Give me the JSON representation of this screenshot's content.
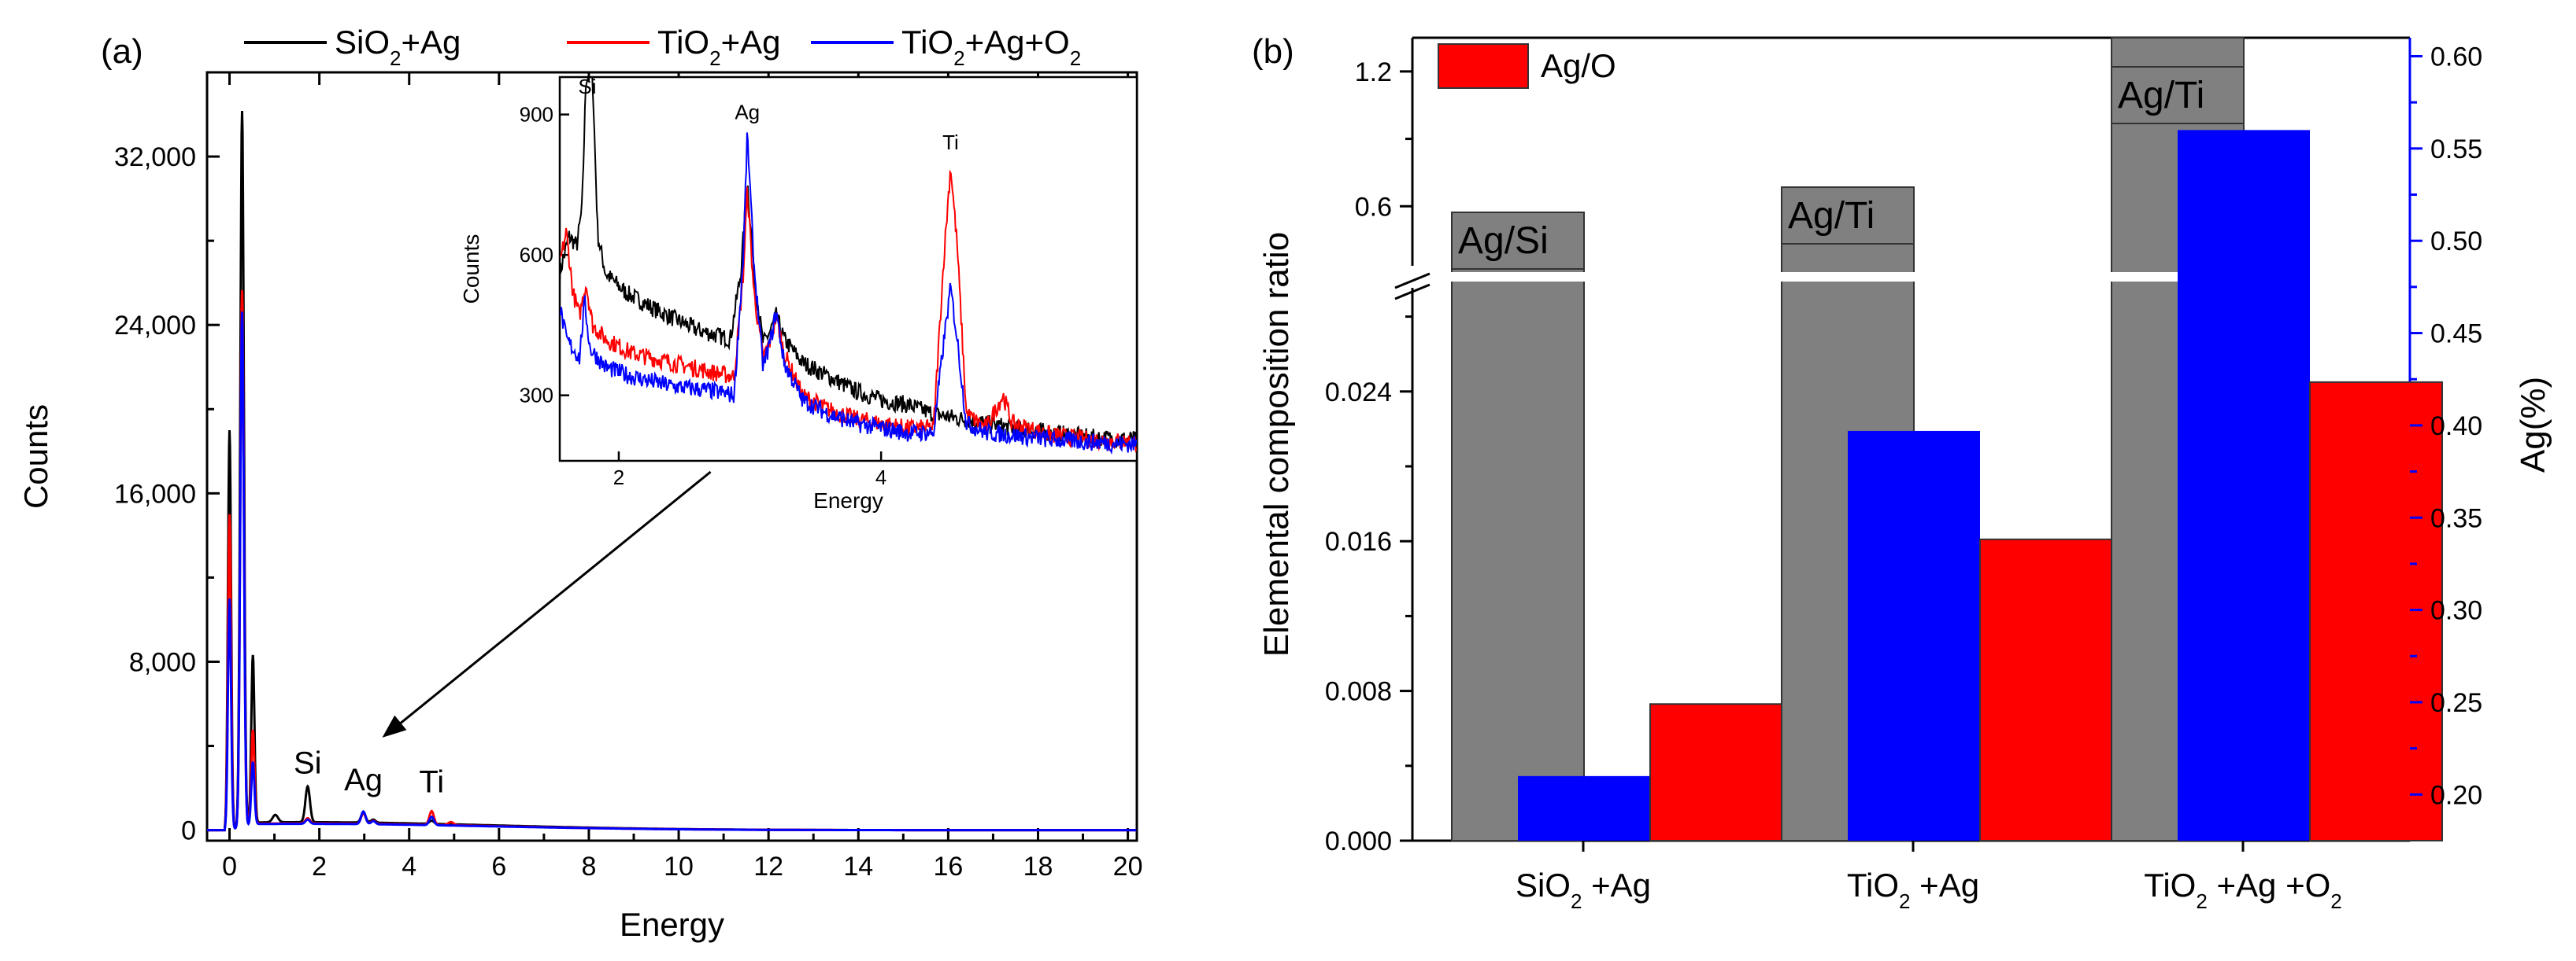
{
  "chart_data": [
    {
      "panel": "(a)",
      "type": "line",
      "xlabel": "Energy",
      "ylabel": "Counts",
      "xlim": [
        -0.5,
        20.2
      ],
      "ylim": [
        -500,
        36000
      ],
      "xticks": [
        0,
        2,
        4,
        6,
        8,
        10,
        12,
        14,
        16,
        18,
        20
      ],
      "xtick_labels": [
        "0",
        "2",
        "4",
        "6",
        "8",
        "10",
        "12",
        "14",
        "16",
        "18",
        "20"
      ],
      "yticks": [
        0,
        8000,
        16000,
        24000,
        32000
      ],
      "ytick_labels": [
        "0",
        "8,000",
        "16,000",
        "24,000",
        "32,000"
      ],
      "legend": [
        {
          "base": "SiO",
          "sub": "2",
          "rest": "+Ag",
          "color": "#000000"
        },
        {
          "base": "TiO",
          "sub": "2",
          "rest": "+Ag",
          "color": "#ff0000"
        },
        {
          "base": "TiO",
          "sub": "2",
          "rest": "+Ag+O",
          "sub2": "2",
          "color": "#0000ff"
        }
      ],
      "annotations": [
        {
          "text": "Si",
          "x": 1.74,
          "y": 1800
        },
        {
          "text": "Ag",
          "x": 2.98,
          "y": 1000
        },
        {
          "text": "Ti",
          "x": 4.5,
          "y": 900
        }
      ],
      "arrow": {
        "from_inset_x": 2.7,
        "to": [
          3.4,
          4400
        ]
      },
      "series": [
        {
          "name": "SiO2+Ag",
          "color": "#000000",
          "peaks": [
            [
              0.0,
              19000,
              0.035
            ],
            [
              0.28,
              34000,
              0.04
            ],
            [
              0.52,
              8000,
              0.035
            ],
            [
              1.02,
              350,
              0.06
            ],
            [
              1.74,
              1700,
              0.05
            ],
            [
              2.98,
              500,
              0.05
            ],
            [
              3.2,
              150,
              0.05
            ],
            [
              4.5,
              150,
              0.05
            ]
          ],
          "background": 380
        },
        {
          "name": "TiO2+Ag",
          "color": "#ff0000",
          "peaks": [
            [
              0.0,
              15000,
              0.035
            ],
            [
              0.28,
              25500,
              0.04
            ],
            [
              0.52,
              4500,
              0.035
            ],
            [
              1.74,
              250,
              0.05
            ],
            [
              2.98,
              500,
              0.05
            ],
            [
              3.2,
              150,
              0.05
            ],
            [
              4.5,
              650,
              0.05
            ],
            [
              4.93,
              150,
              0.06
            ]
          ],
          "background": 320
        },
        {
          "name": "TiO2+Ag+O2",
          "color": "#0000ff",
          "peaks": [
            [
              0.0,
              11000,
              0.035
            ],
            [
              0.28,
              24500,
              0.04
            ],
            [
              0.52,
              3000,
              0.035
            ],
            [
              1.74,
              200,
              0.05
            ],
            [
              2.98,
              600,
              0.05
            ],
            [
              3.2,
              150,
              0.05
            ],
            [
              4.5,
              400,
              0.05
            ]
          ],
          "background": 300
        }
      ],
      "inset": {
        "xlabel": "Energy",
        "ylabel": "Counts",
        "xlim": [
          1.55,
          5.95
        ],
        "ylim": [
          160,
          980
        ],
        "xticks": [
          2,
          4
        ],
        "xtick_labels": [
          "2",
          "4"
        ],
        "yticks": [
          300,
          600,
          900
        ],
        "ytick_labels": [
          "300",
          "600",
          "900"
        ],
        "labels": [
          {
            "text": "Si",
            "x": 1.76,
            "y": 945
          },
          {
            "text": "Ag",
            "x": 2.98,
            "y": 890
          },
          {
            "text": "Ti",
            "x": 4.53,
            "y": 825
          }
        ],
        "series": [
          {
            "name": "SiO2+Ag",
            "color": "#000000",
            "curve": [
              [
                1.55,
                560
              ],
              [
                1.62,
                640
              ],
              [
                1.68,
                620
              ],
              [
                1.72,
                700
              ],
              [
                1.75,
                980
              ],
              [
                1.8,
                980
              ],
              [
                1.84,
                640
              ],
              [
                1.9,
                560
              ],
              [
                2.05,
                520
              ],
              [
                2.3,
                480
              ],
              [
                2.6,
                440
              ],
              [
                2.85,
                420
              ],
              [
                2.93,
                560
              ],
              [
                2.98,
                760
              ],
              [
                3.03,
                560
              ],
              [
                3.1,
                410
              ],
              [
                3.16,
                440
              ],
              [
                3.2,
                470
              ],
              [
                3.26,
                420
              ],
              [
                3.4,
                370
              ],
              [
                3.6,
                340
              ],
              [
                3.8,
                310
              ],
              [
                4.0,
                290
              ],
              [
                4.2,
                280
              ],
              [
                4.4,
                260
              ],
              [
                4.6,
                250
              ],
              [
                4.8,
                240
              ],
              [
                5.0,
                230
              ],
              [
                5.3,
                220
              ],
              [
                5.6,
                210
              ],
              [
                5.95,
                205
              ]
            ]
          },
          {
            "name": "TiO2+Ag",
            "color": "#ff0000",
            "curve": [
              [
                1.55,
                580
              ],
              [
                1.6,
                650
              ],
              [
                1.65,
                520
              ],
              [
                1.7,
                470
              ],
              [
                1.75,
                540
              ],
              [
                1.8,
                450
              ],
              [
                1.9,
                420
              ],
              [
                2.1,
                390
              ],
              [
                2.4,
                370
              ],
              [
                2.7,
                350
              ],
              [
                2.88,
                340
              ],
              [
                2.95,
                560
              ],
              [
                2.98,
                740
              ],
              [
                3.03,
                520
              ],
              [
                3.1,
                380
              ],
              [
                3.16,
                420
              ],
              [
                3.2,
                470
              ],
              [
                3.26,
                390
              ],
              [
                3.4,
                300
              ],
              [
                3.6,
                270
              ],
              [
                3.8,
                250
              ],
              [
                4.0,
                240
              ],
              [
                4.2,
                230
              ],
              [
                4.4,
                230
              ],
              [
                4.48,
                600
              ],
              [
                4.53,
                790
              ],
              [
                4.58,
                620
              ],
              [
                4.65,
                260
              ],
              [
                4.8,
                230
              ],
              [
                4.93,
                300
              ],
              [
                5.0,
                240
              ],
              [
                5.3,
                215
              ],
              [
                5.6,
                205
              ],
              [
                5.95,
                200
              ]
            ]
          },
          {
            "name": "TiO2+Ag+O2",
            "color": "#0000ff",
            "curve": [
              [
                1.55,
                490
              ],
              [
                1.6,
                420
              ],
              [
                1.7,
                380
              ],
              [
                1.74,
                500
              ],
              [
                1.78,
                400
              ],
              [
                1.9,
                360
              ],
              [
                2.1,
                340
              ],
              [
                2.4,
                320
              ],
              [
                2.7,
                310
              ],
              [
                2.88,
                300
              ],
              [
                2.95,
                600
              ],
              [
                2.98,
                860
              ],
              [
                3.03,
                580
              ],
              [
                3.1,
                360
              ],
              [
                3.16,
                420
              ],
              [
                3.2,
                480
              ],
              [
                3.26,
                370
              ],
              [
                3.4,
                290
              ],
              [
                3.6,
                260
              ],
              [
                3.8,
                240
              ],
              [
                4.0,
                230
              ],
              [
                4.2,
                220
              ],
              [
                4.4,
                220
              ],
              [
                4.48,
                420
              ],
              [
                4.53,
                530
              ],
              [
                4.58,
                420
              ],
              [
                4.65,
                240
              ],
              [
                4.8,
                220
              ],
              [
                5.0,
                215
              ],
              [
                5.3,
                205
              ],
              [
                5.6,
                200
              ],
              [
                5.95,
                195
              ]
            ]
          }
        ]
      }
    },
    {
      "panel": "(b)",
      "type": "bar",
      "ylabel": "Elemental composition ratio",
      "ylabel_right": "Ag(%)",
      "categories": [
        {
          "base": "SiO",
          "sub": "2",
          "rest": " +Ag"
        },
        {
          "base": "TiO",
          "sub": "2",
          "rest": " +Ag"
        },
        {
          "base": "TiO",
          "sub": "2",
          "rest": " +Ag +O",
          "sub2": "2"
        }
      ],
      "legend": [
        {
          "label": "Ag/O",
          "color": "#ff0000"
        }
      ],
      "y_left_break": {
        "lower": [
          0,
          0.03
        ],
        "upper": [
          0.3,
          1.35
        ]
      },
      "y_left_ticks": [
        0,
        0.008,
        0.016,
        0.024,
        0.6,
        1.2
      ],
      "y_left_tick_labels": [
        "0.000",
        "0.008",
        "0.016",
        "0.024",
        "0.6",
        "1.2"
      ],
      "y_right_lim": [
        0.175,
        0.61
      ],
      "y_right_ticks": [
        0.2,
        0.25,
        0.3,
        0.35,
        0.4,
        0.45,
        0.5,
        0.55,
        0.6
      ],
      "y_right_tick_labels": [
        "0.20",
        "0.25",
        "0.30",
        "0.35",
        "0.40",
        "0.45",
        "0.50",
        "0.55",
        "0.60"
      ],
      "series": [
        {
          "name": "Ag/Si, Ag/Ti",
          "color": "#808080",
          "axis": "left",
          "values": [
            0.45,
            0.65,
            1.35
          ],
          "labels": [
            "Ag/Si",
            "Ag/Ti",
            "Ag/Ti"
          ]
        },
        {
          "name": "Ag(%)",
          "color": "#0000ff",
          "axis": "right",
          "values": [
            0.21,
            0.397,
            0.56
          ]
        },
        {
          "name": "Ag/O",
          "color": "#ff0000",
          "axis": "left",
          "values": [
            0.0073,
            0.0161,
            0.0245
          ]
        }
      ]
    }
  ]
}
